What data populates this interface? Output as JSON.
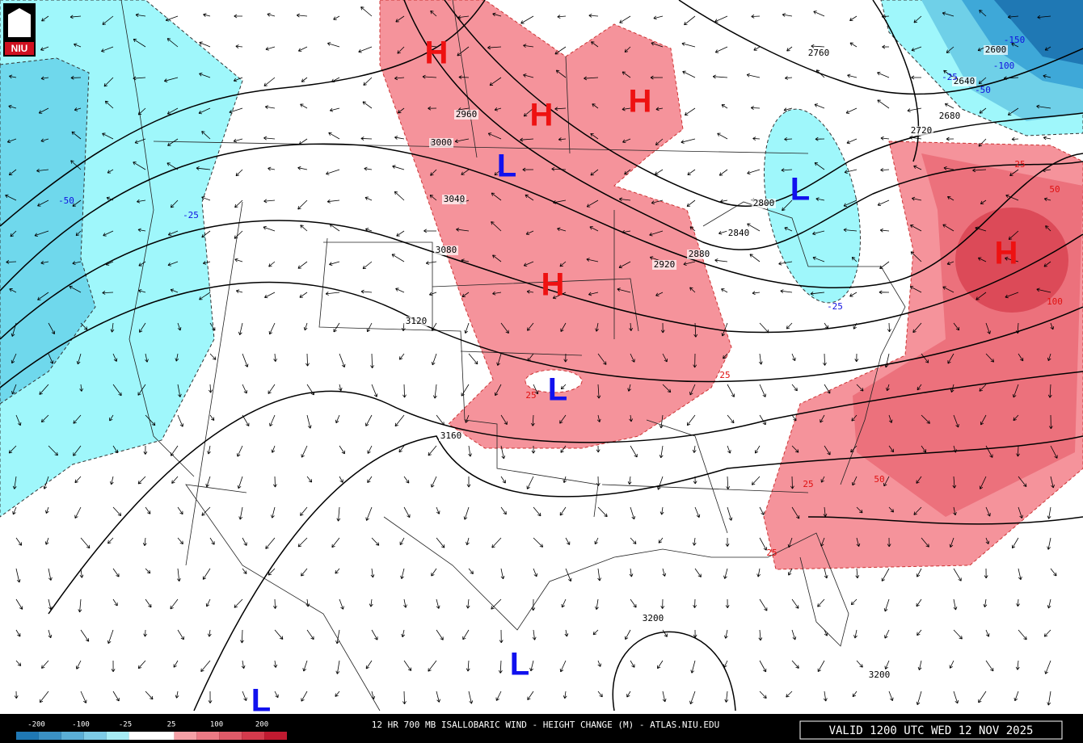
{
  "logo": "NIU",
  "footer": {
    "title": "12 HR 700 MB ISALLOBARIC WIND - HEIGHT CHANGE (M) - ATLAS.NIU.EDU",
    "valid": "VALID 1200 UTC WED 12 NOV 2025"
  },
  "legend": {
    "ticks": [
      -200,
      -100,
      -25,
      25,
      100,
      200
    ],
    "colors": [
      "#1f78b4",
      "#3a90c4",
      "#5aaed6",
      "#7dcbe6",
      "#a6ecf5",
      "#ffffff",
      "#ffffff",
      "#f5a0a6",
      "#ec7a85",
      "#e05a68",
      "#d43a4c",
      "#c01a30"
    ]
  },
  "height_labels": [
    2960,
    3000,
    3040,
    3080,
    3120,
    3160,
    3200,
    3200,
    2920,
    2880,
    2840,
    2800,
    2760,
    2720,
    2680,
    2640,
    2600
  ],
  "change_labels": [
    -50,
    -25,
    -25,
    -25,
    -100,
    -150,
    -50,
    25,
    25,
    25,
    25,
    50,
    100,
    50,
    25
  ],
  "centers": [
    {
      "label": "H"
    },
    {
      "label": "H"
    },
    {
      "label": "H"
    },
    {
      "label": "H"
    },
    {
      "label": "H"
    },
    {
      "label": "L"
    },
    {
      "label": "L"
    },
    {
      "label": "L"
    },
    {
      "label": "L"
    },
    {
      "label": "L"
    }
  ]
}
